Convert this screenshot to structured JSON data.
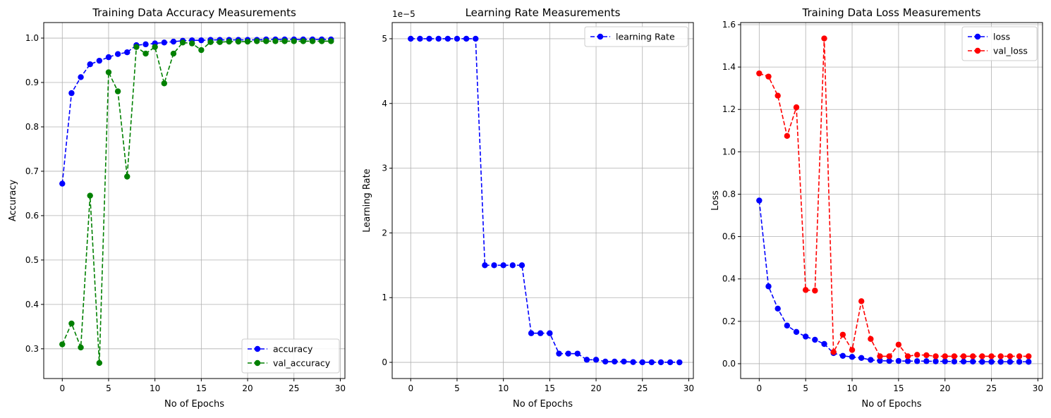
{
  "chart_data": [
    {
      "type": "line",
      "title": "Training Data Accuracy Measurements",
      "xlabel": "No of Epochs",
      "ylabel": "Accuracy",
      "xlim": [
        -2,
        30.5
      ],
      "ylim": [
        0.233,
        1.035
      ],
      "xticks": [
        0,
        5,
        10,
        15,
        20,
        25,
        30
      ],
      "yticks": [
        0.3,
        0.4,
        0.5,
        0.6,
        0.7,
        0.8,
        0.9,
        1.0
      ],
      "ytick_labels": [
        "0.3",
        "0.4",
        "0.5",
        "0.6",
        "0.7",
        "0.8",
        "0.9",
        "1.0"
      ],
      "grid": true,
      "legend_position": "lower-right",
      "x": [
        0,
        1,
        2,
        3,
        4,
        5,
        6,
        7,
        8,
        9,
        10,
        11,
        12,
        13,
        14,
        15,
        16,
        17,
        18,
        19,
        20,
        21,
        22,
        23,
        24,
        25,
        26,
        27,
        28,
        29
      ],
      "series": [
        {
          "name": "accuracy",
          "color": "#0000ff",
          "values": [
            0.672,
            0.876,
            0.912,
            0.941,
            0.949,
            0.957,
            0.964,
            0.968,
            0.984,
            0.986,
            0.988,
            0.99,
            0.992,
            0.994,
            0.995,
            0.995,
            0.996,
            0.996,
            0.996,
            0.996,
            0.996,
            0.996,
            0.997,
            0.997,
            0.997,
            0.997,
            0.997,
            0.997,
            0.997,
            0.997
          ]
        },
        {
          "name": "val_accuracy",
          "color": "#008000",
          "values": [
            0.31,
            0.357,
            0.303,
            0.645,
            0.268,
            0.923,
            0.88,
            0.688,
            0.98,
            0.965,
            0.98,
            0.898,
            0.965,
            0.99,
            0.988,
            0.973,
            0.991,
            0.991,
            0.992,
            0.992,
            0.992,
            0.993,
            0.993,
            0.993,
            0.993,
            0.993,
            0.993,
            0.993,
            0.993,
            0.993
          ]
        }
      ]
    },
    {
      "type": "line",
      "title": "Learning Rate Measurements",
      "xlabel": "No of Epochs",
      "ylabel": "Learning Rate",
      "offset_label": "1e−5",
      "xlim": [
        -2,
        30.5
      ],
      "ylim": [
        -0.25,
        5.25
      ],
      "xticks": [
        0,
        5,
        10,
        15,
        20,
        25,
        30
      ],
      "yticks": [
        0,
        1,
        2,
        3,
        4,
        5
      ],
      "ytick_labels": [
        "0",
        "1",
        "2",
        "3",
        "4",
        "5"
      ],
      "grid": true,
      "legend_position": "upper-right",
      "x": [
        0,
        1,
        2,
        3,
        4,
        5,
        6,
        7,
        8,
        9,
        10,
        11,
        12,
        13,
        14,
        15,
        16,
        17,
        18,
        19,
        20,
        21,
        22,
        23,
        24,
        25,
        26,
        27,
        28,
        29
      ],
      "series": [
        {
          "name": "learning Rate",
          "color": "#0000ff",
          "values": [
            5,
            5,
            5,
            5,
            5,
            5,
            5,
            5,
            1.5,
            1.5,
            1.5,
            1.5,
            1.5,
            0.45,
            0.45,
            0.45,
            0.135,
            0.135,
            0.135,
            0.04,
            0.04,
            0.012,
            0.012,
            0.012,
            0.004,
            0.001,
            0.001,
            0.001,
            0.001,
            0.0003
          ]
        }
      ]
    },
    {
      "type": "line",
      "title": "Training Data Loss Measurements",
      "xlabel": "No of Epochs",
      "ylabel": "Loss",
      "xlim": [
        -2,
        30.5
      ],
      "ylim": [
        -0.07,
        1.61
      ],
      "xticks": [
        0,
        5,
        10,
        15,
        20,
        25,
        30
      ],
      "yticks": [
        0.0,
        0.2,
        0.4,
        0.6,
        0.8,
        1.0,
        1.2,
        1.4,
        1.6
      ],
      "ytick_labels": [
        "0.0",
        "0.2",
        "0.4",
        "0.6",
        "0.8",
        "1.0",
        "1.2",
        "1.4",
        "1.6"
      ],
      "grid": true,
      "legend_position": "upper-right",
      "x": [
        0,
        1,
        2,
        3,
        4,
        5,
        6,
        7,
        8,
        9,
        10,
        11,
        12,
        13,
        14,
        15,
        16,
        17,
        18,
        19,
        20,
        21,
        22,
        23,
        24,
        25,
        26,
        27,
        28,
        29
      ],
      "series": [
        {
          "name": "loss",
          "color": "#0000ff",
          "values": [
            0.77,
            0.365,
            0.26,
            0.18,
            0.15,
            0.128,
            0.113,
            0.093,
            0.05,
            0.037,
            0.032,
            0.027,
            0.018,
            0.014,
            0.013,
            0.013,
            0.012,
            0.012,
            0.012,
            0.011,
            0.011,
            0.01,
            0.01,
            0.01,
            0.009,
            0.009,
            0.009,
            0.009,
            0.009,
            0.009
          ]
        },
        {
          "name": "val_loss",
          "color": "#ff0000",
          "values": [
            1.37,
            1.355,
            1.265,
            1.075,
            1.21,
            0.348,
            0.345,
            1.535,
            0.055,
            0.137,
            0.065,
            0.295,
            0.117,
            0.035,
            0.035,
            0.09,
            0.035,
            0.042,
            0.04,
            0.035,
            0.035,
            0.035,
            0.035,
            0.035,
            0.035,
            0.035,
            0.035,
            0.035,
            0.035,
            0.035
          ]
        }
      ]
    }
  ]
}
